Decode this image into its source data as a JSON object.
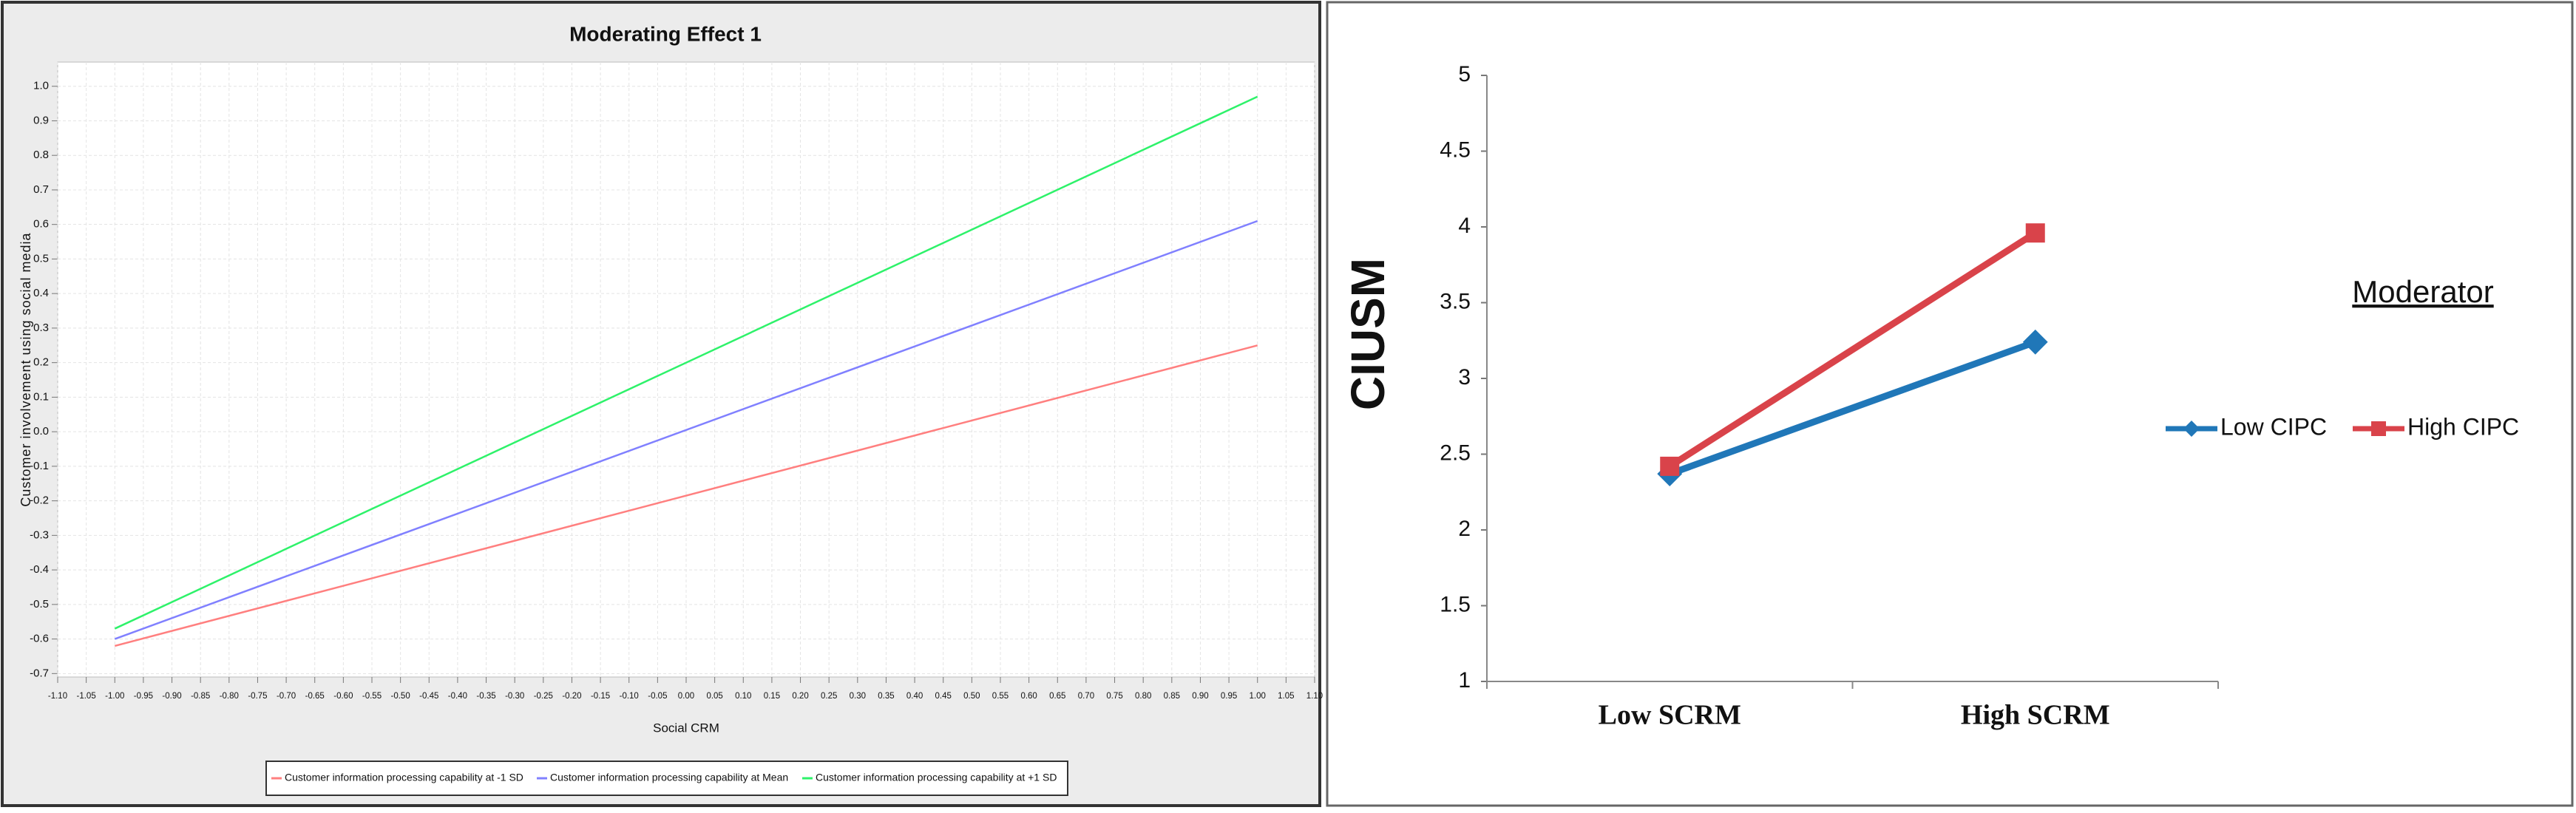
{
  "chart_data": [
    {
      "type": "line",
      "title": "Moderating Effect 1",
      "xlabel": "Social CRM",
      "ylabel": "Customer involvement using social media",
      "x": [
        -1,
        1
      ],
      "series": [
        {
          "name": "Customer information processing capability  at -1 SD",
          "color": "#ff7f7f",
          "values": [
            -0.62,
            0.25
          ]
        },
        {
          "name": "Customer information processing capability  at Mean",
          "color": "#8080ff",
          "values": [
            -0.6,
            0.61
          ]
        },
        {
          "name": "Customer information processing capability  at +1 SD",
          "color": "#2ef26a",
          "values": [
            -0.57,
            0.97
          ]
        }
      ],
      "xlim": [
        -1.1,
        1.1
      ],
      "xticks": [
        {
          "value": -1.1,
          "label": "-1.10"
        },
        -1.05,
        {
          "value": -1,
          "label": "-1.00"
        },
        -0.95,
        {
          "value": -0.9,
          "label": "-0.90"
        },
        -0.85,
        {
          "value": -0.8,
          "label": "-0.80"
        },
        -0.75,
        {
          "value": -0.7,
          "label": "-0.70"
        },
        -0.65,
        {
          "value": -0.6,
          "label": "-0.60"
        },
        -0.55,
        {
          "value": -0.5,
          "label": "-0.50"
        },
        -0.45,
        {
          "value": -0.4,
          "label": "-0.40"
        },
        -0.35,
        {
          "value": -0.3,
          "label": "-0.30"
        },
        -0.25,
        {
          "value": -0.2,
          "label": "-0.20"
        },
        -0.15,
        {
          "value": -0.1,
          "label": "-0.10"
        },
        -0.05,
        {
          "value": 0,
          "label": "0.00"
        },
        0.05,
        {
          "value": 0.1,
          "label": "0.10"
        },
        0.15,
        {
          "value": 0.2,
          "label": "0.20"
        },
        0.25,
        {
          "value": 0.3,
          "label": "0.30"
        },
        0.35,
        {
          "value": 0.4,
          "label": "0.40"
        },
        0.45,
        {
          "value": 0.5,
          "label": "0.50"
        },
        0.55,
        {
          "value": 0.6,
          "label": "0.60"
        },
        0.65,
        {
          "value": 0.7,
          "label": "0.70"
        },
        0.75,
        {
          "value": 0.8,
          "label": "0.80"
        },
        0.85,
        {
          "value": 0.9,
          "label": "0.90"
        },
        0.95,
        {
          "value": 1,
          "label": "1.00"
        },
        1.05,
        {
          "value": 1.1,
          "label": "1.10"
        }
      ],
      "ylim": [
        -0.71,
        1.07
      ],
      "yticks": [
        {
          "value": 1,
          "label": "1.0"
        },
        0.9,
        0.8,
        0.7,
        0.6,
        0.5,
        0.4,
        0.3,
        0.2,
        0.1,
        {
          "value": 0,
          "label": "0.0"
        },
        -0.1,
        -0.2,
        -0.3,
        -0.4,
        -0.5,
        -0.6,
        -0.7
      ],
      "grid": true
    },
    {
      "type": "line",
      "ylabel": "CIUSM",
      "legend_title": "Moderator",
      "categories": [
        "Low SCRM",
        "High SCRM"
      ],
      "series": [
        {
          "name": "Low CIPC",
          "color": "#2077b8",
          "marker": "diamond",
          "values": [
            2.37,
            3.24
          ]
        },
        {
          "name": "High CIPC",
          "color": "#d9434a",
          "marker": "square",
          "values": [
            2.42,
            3.96
          ]
        }
      ],
      "ylim": [
        1,
        5
      ],
      "yticks": [
        1,
        1.5,
        2,
        2.5,
        3,
        3.5,
        4,
        4.5,
        5
      ],
      "grid": false
    }
  ]
}
